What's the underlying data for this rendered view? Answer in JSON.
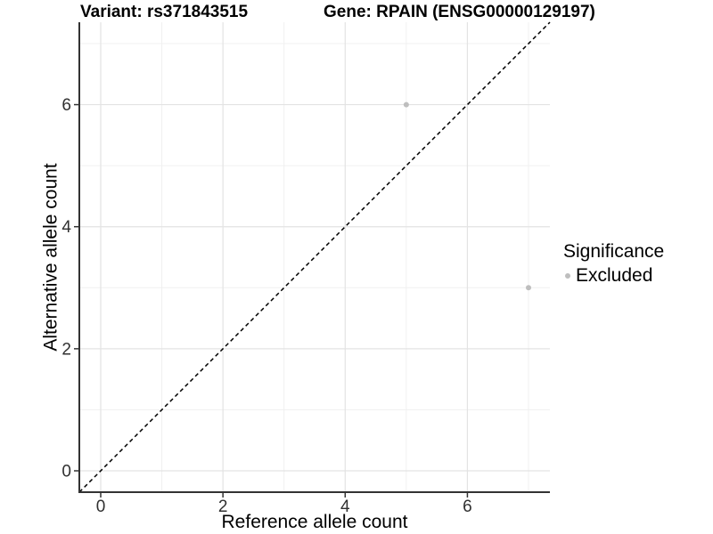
{
  "titles": {
    "variant": "Variant: rs371843515",
    "gene": "Gene: RPAIN (ENSG00000129197)"
  },
  "legend": {
    "title": "Significance",
    "items": [
      {
        "label": "Excluded",
        "color": "#bebebe"
      }
    ]
  },
  "chart_data": {
    "type": "scatter",
    "title_left": "Variant: rs371843515",
    "title_right": "Gene: RPAIN (ENSG00000129197)",
    "xlabel": "Reference allele count",
    "ylabel": "Alternative allele count",
    "xlim": [
      -0.35,
      7.35
    ],
    "ylim": [
      -0.35,
      7.35
    ],
    "x_major_ticks": [
      0,
      2,
      4,
      6
    ],
    "y_major_ticks": [
      0,
      2,
      4,
      6
    ],
    "x_minor_ticks": [
      1,
      3,
      5,
      7
    ],
    "y_minor_ticks": [
      1,
      3,
      5,
      7
    ],
    "grid": "major+minor",
    "legend_position": "right",
    "legend_title": "Significance",
    "series": [
      {
        "name": "Excluded",
        "marker": "circle",
        "color": "#bebebe",
        "points": [
          {
            "x": 5,
            "y": 6
          },
          {
            "x": 7,
            "y": 3
          }
        ]
      }
    ],
    "reference_line": {
      "kind": "identity y=x",
      "style": "dashed",
      "color": "#000000",
      "from": [
        -0.35,
        -0.35
      ],
      "to": [
        7.35,
        7.35
      ]
    },
    "colors": {
      "background": "#ffffff",
      "grid_major": "#e3e3e3",
      "grid_minor": "#f0f0f0",
      "axis_line": "#333333",
      "tick_text": "#303030",
      "point": "#bebebe"
    }
  }
}
